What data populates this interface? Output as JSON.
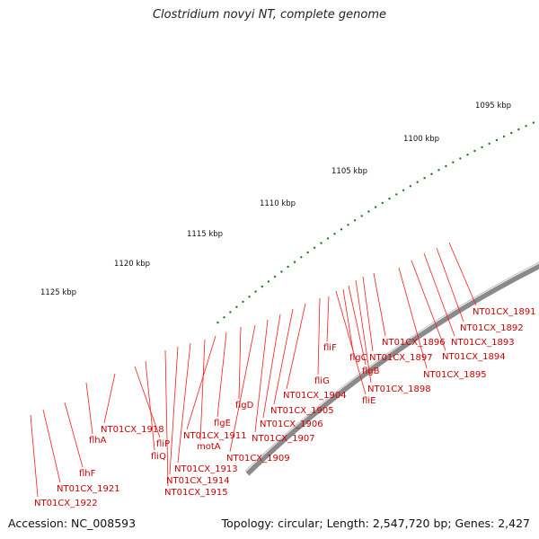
{
  "title": "Clostridium novyi NT, complete genome",
  "footer": {
    "accession": "Accession: NC_008593",
    "stats": "Topology: circular; Length: 2,547,720 bp; Genes: 2,427"
  },
  "colors": {
    "backbone": "#8a8a8a",
    "tick": "#1f7a1f",
    "forward_gene": "#ff1a1a",
    "label_red": "#cc0000",
    "cog_dark_green": "#2e8b2e",
    "cog_light_green": "#aaf044",
    "cog_olive": "#889922",
    "cog_yellow": "#eeee99",
    "cog_cyan": "#22ccdd",
    "cog_orange": "#ee8800",
    "cog_blue": "#4488cc"
  },
  "scale_labels": [
    "1095 kbp",
    "1100 kbp",
    "1105 kbp",
    "1110 kbp",
    "1115 kbp",
    "1120 kbp",
    "1125 kbp"
  ],
  "gene_labels": [
    "NT01CX_1891",
    "NT01CX_1892",
    "NT01CX_1893",
    "NT01CX_1894",
    "NT01CX_1895",
    "NT01CX_1896",
    "NT01CX_1897",
    "NT01CX_1898",
    "flgB",
    "flgC",
    "fliE",
    "fliF",
    "fliG",
    "NT01CX_1904",
    "NT01CX_1905",
    "NT01CX_1906",
    "NT01CX_1907",
    "NT01CX_1909",
    "flgD",
    "flgE",
    "NT01CX_1911",
    "motA",
    "NT01CX_1913",
    "NT01CX_1914",
    "NT01CX_1915",
    "fliQ",
    "fliP",
    "NT01CX_1918",
    "flhA",
    "flhF",
    "NT01CX_1921",
    "NT01CX_1922"
  ]
}
